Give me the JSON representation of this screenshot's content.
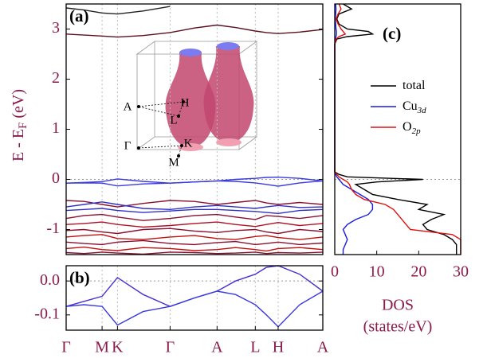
{
  "chart_data": [
    {
      "type": "line",
      "panel_label": "(a)",
      "ylabel": {
        "text": "E - E",
        "sub": "F",
        "unit": "(eV)"
      },
      "xlim": [
        0,
        1
      ],
      "ylim": [
        -1.5,
        3.5
      ],
      "yticks": [
        -1,
        0,
        1,
        2,
        3
      ],
      "hline": 0,
      "inset_labels": [
        "A",
        "H",
        "L",
        "Γ",
        "K",
        "M"
      ],
      "x": [
        0,
        0.07,
        0.14,
        0.2,
        0.3,
        0.405,
        0.5,
        0.588,
        0.66,
        0.737,
        0.78,
        0.826,
        0.91,
        1.0
      ],
      "series": [
        {
          "color": "#222222",
          "values": [
            3.42,
            3.38,
            3.32,
            3.3,
            3.36,
            3.45,
            null,
            null,
            null,
            null,
            null,
            null,
            null,
            null
          ]
        },
        {
          "color": "#5a1020",
          "values": [
            2.9,
            2.88,
            2.86,
            2.84,
            2.87,
            2.93,
            3.02,
            3.08,
            3.03,
            2.96,
            2.93,
            2.91,
            2.94,
            2.99
          ]
        },
        {
          "color": "#3a3ae0",
          "values": [
            -0.075,
            -0.06,
            -0.045,
            0.01,
            -0.04,
            -0.075,
            -0.05,
            -0.03,
            0.0,
            0.02,
            0.04,
            0.045,
            0.02,
            -0.03
          ]
        },
        {
          "color": "#3a3ae0",
          "values": [
            -0.075,
            -0.07,
            -0.075,
            -0.13,
            -0.09,
            -0.075,
            -0.05,
            -0.03,
            -0.04,
            -0.07,
            -0.1,
            -0.135,
            -0.07,
            -0.03
          ]
        },
        {
          "color": "#8a1030",
          "values": [
            -0.42,
            -0.44,
            -0.5,
            -0.55,
            -0.48,
            -0.42,
            -0.44,
            -0.5,
            -0.46,
            -0.42,
            -0.47,
            -0.5,
            -0.46,
            -0.5
          ]
        },
        {
          "color": "#3030c8",
          "values": [
            -0.55,
            -0.5,
            -0.45,
            -0.5,
            -0.58,
            -0.6,
            -0.55,
            -0.52,
            -0.55,
            -0.58,
            -0.55,
            -0.52,
            -0.56,
            -0.55
          ]
        },
        {
          "color": "#3030c8",
          "values": [
            -0.62,
            -0.6,
            -0.58,
            -0.62,
            -0.66,
            -0.63,
            -0.6,
            -0.6,
            -0.62,
            -0.64,
            -0.66,
            -0.68,
            -0.62,
            -0.6
          ]
        },
        {
          "color": "#8a1030",
          "values": [
            -0.78,
            -0.72,
            -0.7,
            -0.75,
            -0.82,
            -0.78,
            -0.72,
            -0.7,
            -0.75,
            -0.8,
            -0.72,
            -0.74,
            -0.78,
            -0.72
          ]
        },
        {
          "color": "#b01020",
          "values": [
            -0.9,
            -0.88,
            -0.85,
            -0.9,
            -0.95,
            -0.92,
            -0.88,
            -0.85,
            -0.9,
            -0.94,
            -0.9,
            -0.86,
            -0.92,
            -0.88
          ]
        },
        {
          "color": "#8a1030",
          "values": [
            -1.02,
            -1.0,
            -1.05,
            -1.08,
            -1.0,
            -0.98,
            -1.03,
            -1.06,
            -1.02,
            -1.0,
            -1.05,
            -1.08,
            -1.0,
            -1.04
          ]
        },
        {
          "color": "#c01010",
          "values": [
            -1.15,
            -1.12,
            -1.1,
            -1.18,
            -1.2,
            -1.15,
            -1.12,
            -1.18,
            -1.2,
            -1.14,
            -1.12,
            -1.16,
            -1.2,
            -1.15
          ]
        },
        {
          "color": "#8a1030",
          "values": [
            -1.25,
            -1.28,
            -1.3,
            -1.25,
            -1.22,
            -1.28,
            -1.3,
            -1.26,
            -1.24,
            -1.3,
            -1.28,
            -1.25,
            -1.3,
            -1.27
          ]
        },
        {
          "color": "#c01010",
          "values": [
            -1.38,
            -1.35,
            -1.4,
            -1.42,
            -1.36,
            -1.38,
            -1.42,
            -1.4,
            -1.36,
            -1.4,
            -1.43,
            -1.38,
            -1.36,
            -1.4
          ]
        },
        {
          "color": "#8a1030",
          "values": [
            -1.46,
            -1.48,
            -1.45,
            -1.47,
            -1.49,
            -1.45,
            -1.46,
            -1.48,
            -1.47,
            -1.45,
            -1.48,
            -1.46,
            -1.47,
            -1.45
          ]
        }
      ]
    },
    {
      "type": "line",
      "panel_label": "(b)",
      "xlim": [
        0,
        1
      ],
      "ylim": [
        -0.145,
        0.045
      ],
      "yticks": [
        {
          "value": 0,
          "label": "0.0"
        },
        -0.1
      ],
      "hline": 0,
      "xticks": [
        {
          "value": 0,
          "label": "Γ"
        },
        {
          "value": 0.14,
          "label": "M"
        },
        {
          "value": 0.2,
          "label": "K"
        },
        {
          "value": 0.405,
          "label": "Γ"
        },
        {
          "value": 0.588,
          "label": "A"
        },
        {
          "value": 0.737,
          "label": "L"
        },
        {
          "value": 0.826,
          "label": "H"
        },
        {
          "value": 1.0,
          "label": "A"
        }
      ],
      "x": [
        0,
        0.07,
        0.14,
        0.2,
        0.3,
        0.405,
        0.5,
        0.588,
        0.66,
        0.737,
        0.78,
        0.826,
        0.91,
        1.0
      ],
      "series": [
        {
          "color": "#4a30d0",
          "values": [
            -0.075,
            -0.06,
            -0.045,
            0.01,
            -0.04,
            -0.075,
            -0.05,
            -0.03,
            0.0,
            0.02,
            0.04,
            0.045,
            0.02,
            -0.03
          ]
        },
        {
          "color": "#3a3ae0",
          "values": [
            -0.075,
            -0.07,
            -0.075,
            -0.13,
            -0.09,
            -0.075,
            -0.05,
            -0.03,
            -0.04,
            -0.07,
            -0.1,
            -0.135,
            -0.07,
            -0.03
          ]
        }
      ]
    },
    {
      "type": "line",
      "orientation": "horizontal",
      "panel_label": "(c)",
      "xlabel": [
        "DOS",
        "(states/eV)"
      ],
      "xlim": [
        0,
        30
      ],
      "xticks": [
        0,
        10,
        20,
        30
      ],
      "ylim": [
        -1.5,
        3.5
      ],
      "hline": 0,
      "y": [
        3.5,
        3.4,
        3.3,
        3.2,
        3.1,
        3.0,
        2.95,
        2.9,
        2.85,
        2.8,
        2.7,
        2.0,
        1.0,
        0.15,
        0.1,
        0.05,
        0,
        -0.05,
        -0.1,
        -0.2,
        -0.3,
        -0.4,
        -0.5,
        -0.6,
        -0.7,
        -0.8,
        -0.9,
        -1.0,
        -1.1,
        -1.2,
        -1.3,
        -1.4,
        -1.5
      ],
      "series": [
        {
          "name": "total",
          "color": "#000000",
          "values": [
            2,
            4,
            1,
            0.5,
            1,
            3,
            8,
            9,
            3,
            0.5,
            0,
            0,
            0,
            0,
            1,
            3,
            21,
            10,
            5,
            7,
            9,
            15,
            22,
            20,
            26,
            23,
            21,
            22,
            26,
            28,
            29,
            29,
            29
          ]
        },
        {
          "name": "Cu",
          "name_sub": "3d",
          "color": "#1a1ae0",
          "values": [
            0.2,
            0.3,
            0.2,
            0.1,
            0.2,
            0.3,
            0.4,
            0.4,
            0.3,
            0.1,
            0,
            0,
            0,
            0,
            0.2,
            0.5,
            1,
            1.5,
            2,
            4,
            6,
            8,
            9,
            9,
            8,
            5,
            3,
            2,
            2.5,
            3,
            2.5,
            2,
            2
          ]
        },
        {
          "name": "O",
          "name_sub": "2p",
          "color": "#e01010",
          "values": [
            1,
            1.5,
            0.8,
            0.3,
            0.8,
            1.5,
            2,
            2.5,
            1,
            0.3,
            0,
            0,
            0,
            0,
            0.5,
            1,
            2,
            3,
            3.5,
            4,
            5,
            7,
            12,
            14,
            15,
            16,
            17,
            18,
            28,
            30,
            30,
            30,
            30
          ]
        }
      ]
    }
  ]
}
